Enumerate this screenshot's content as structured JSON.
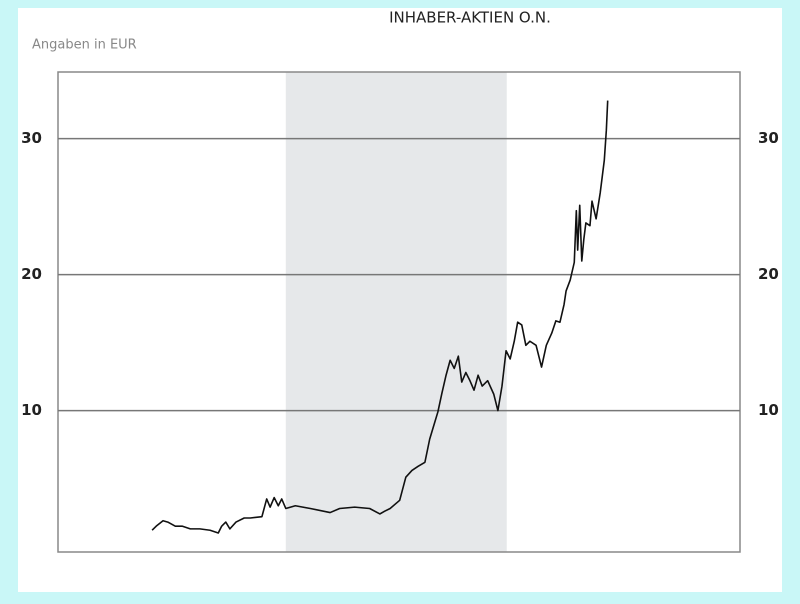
{
  "chart_data": {
    "type": "line",
    "title": "INHABER-AKTIEN O.N.",
    "subtitle": "Angaben in EUR",
    "x": [
      13.8,
      14.4,
      15.4,
      16.1,
      17.2,
      18.2,
      19.4,
      20.8,
      22.3,
      23.5,
      24.0,
      24.6,
      25.2,
      26.1,
      27.3,
      28.2,
      29.9,
      30.6,
      31.1,
      31.7,
      32.3,
      32.8,
      33.4,
      34.8,
      37.0,
      39.9,
      41.3,
      43.5,
      45.7,
      47.2,
      47.9,
      48.7,
      50.1,
      51.0,
      51.9,
      52.8,
      53.8,
      54.5,
      55.1,
      55.7,
      56.3,
      56.9,
      57.5,
      58.1,
      58.7,
      59.2,
      59.8,
      60.4,
      61.0,
      61.6,
      62.2,
      63.0,
      63.9,
      64.5,
      65.1,
      65.4,
      65.7,
      66.3,
      66.9,
      67.4,
      68.0,
      68.6,
      69.2,
      70.1,
      70.9,
      71.6,
      72.4,
      73.0,
      73.6,
      74.2,
      74.5,
      75.1,
      75.7,
      76.0,
      76.2,
      76.5,
      76.8,
      77.1,
      77.4,
      78.0,
      78.3,
      78.9,
      79.5,
      80.1,
      80.4,
      80.6
    ],
    "series": [
      {
        "color": "#111111",
        "values": [
          1.2,
          1.5,
          1.9,
          1.8,
          1.5,
          1.5,
          1.3,
          1.3,
          1.2,
          1.0,
          1.5,
          1.8,
          1.3,
          1.8,
          2.1,
          2.1,
          2.2,
          3.5,
          2.9,
          3.6,
          3.0,
          3.5,
          2.8,
          3.0,
          2.8,
          2.5,
          2.8,
          2.9,
          2.8,
          2.4,
          2.6,
          2.8,
          3.4,
          5.1,
          5.6,
          5.9,
          6.2,
          7.9,
          8.9,
          9.9,
          11.3,
          12.6,
          13.7,
          13.1,
          14.0,
          12.1,
          12.8,
          12.2,
          11.5,
          12.6,
          11.8,
          12.2,
          11.2,
          10.0,
          11.8,
          13.1,
          14.4,
          13.8,
          15.1,
          16.5,
          16.3,
          14.8,
          15.1,
          14.8,
          13.2,
          14.8,
          15.7,
          16.6,
          16.5,
          17.8,
          18.8,
          19.6,
          20.9,
          24.7,
          21.8,
          25.1,
          21.0,
          22.6,
          23.8,
          23.6,
          25.4,
          24.1,
          26.0,
          28.4,
          30.6,
          32.8
        ]
      }
    ],
    "xlim": [
      0,
      100
    ],
    "ylim": [
      -0.4,
      34.9
    ],
    "yticks": [
      10,
      20,
      30
    ],
    "grid": true,
    "highlight_x": [
      33.4,
      65.8
    ]
  }
}
